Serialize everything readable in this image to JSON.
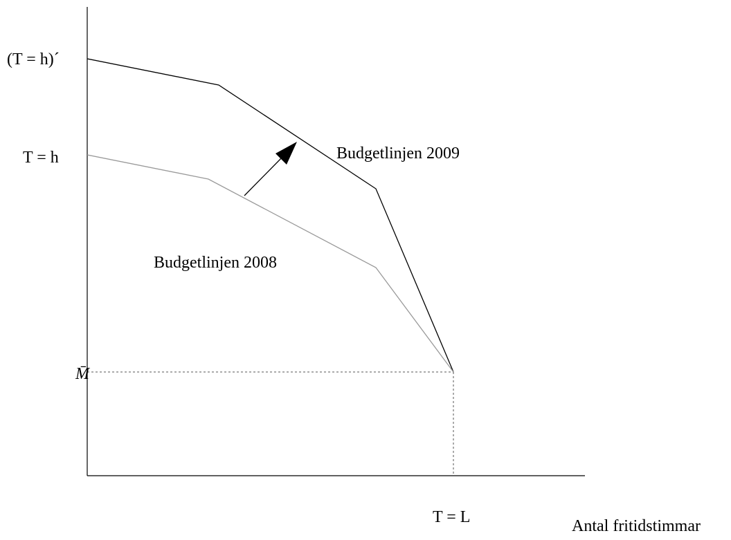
{
  "y_axis_labels": {
    "top": "(T = h)´",
    "middle": "T = h",
    "bottom": "M̄"
  },
  "x_axis_labels": {
    "point": "T = L",
    "title": "Antal fritidstimmar"
  },
  "lines": [
    {
      "label": "Budgetlinjen 2009"
    },
    {
      "label": "Budgetlinjen 2008"
    }
  ]
}
